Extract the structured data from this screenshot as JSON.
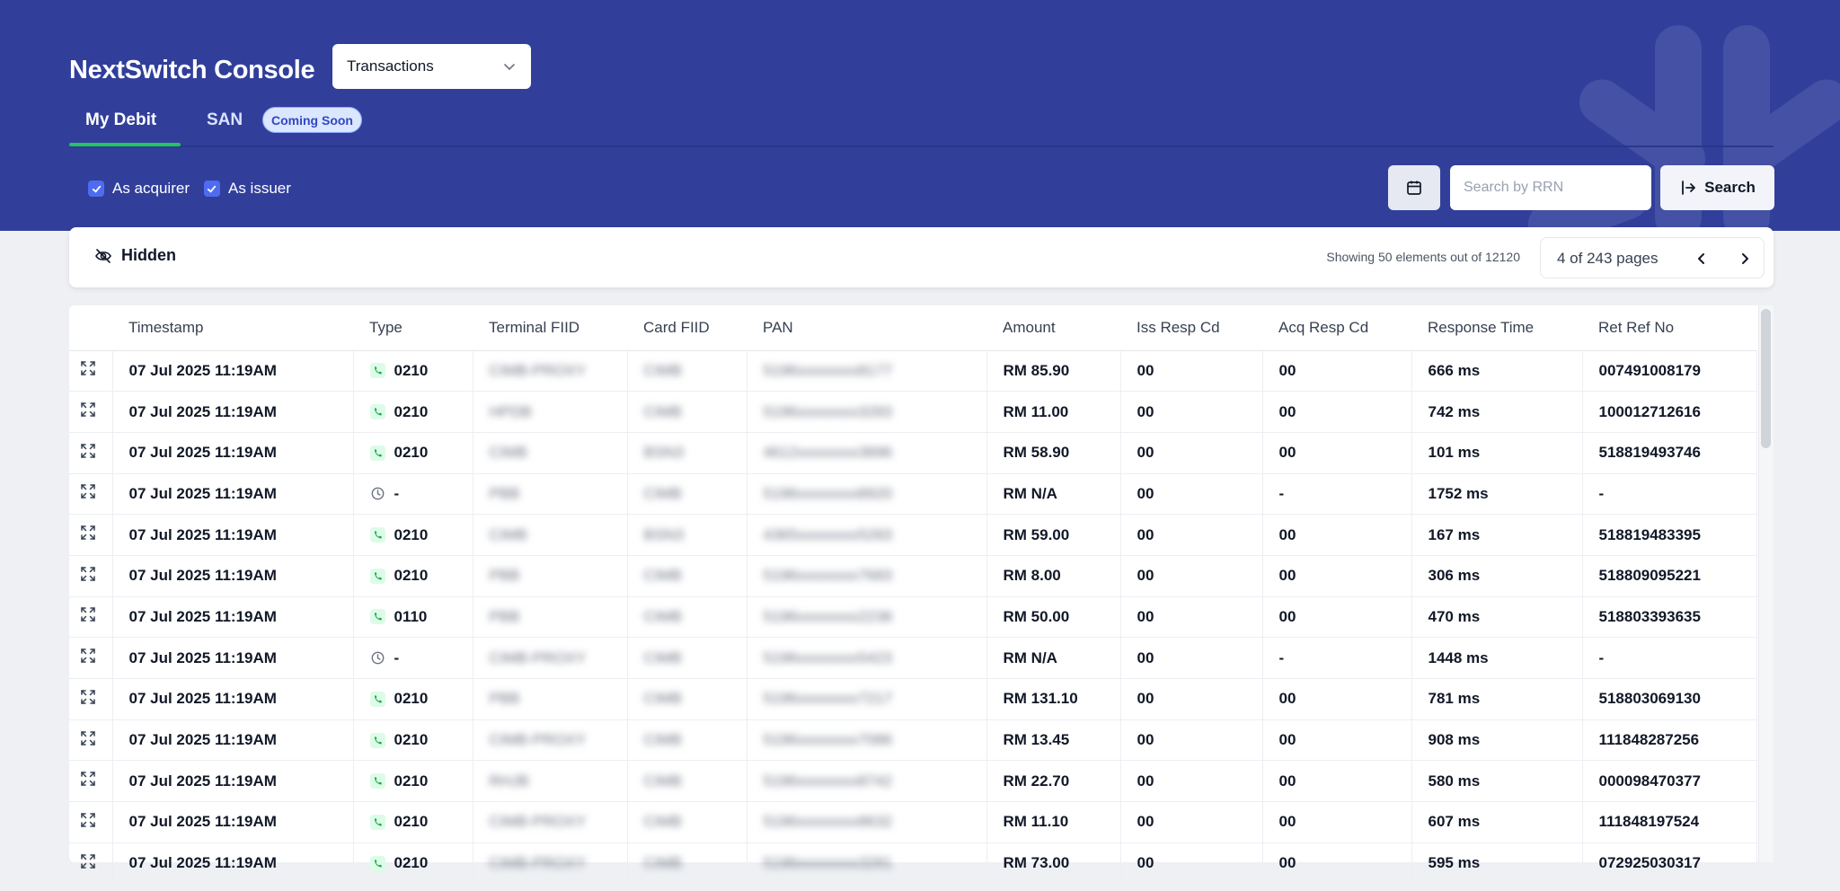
{
  "colors": {
    "header_bg": "#313f9b",
    "accent_green": "#22c55e",
    "checkbox": "#4f6cf0",
    "badge_bg": "#dbe6ff"
  },
  "header": {
    "brand": "NextSwitch Console",
    "module_select": {
      "value": "Transactions"
    },
    "tabs": [
      {
        "label": "My Debit",
        "active": true
      },
      {
        "label": "SAN",
        "active": false,
        "badge": "Coming Soon"
      }
    ],
    "filters": [
      {
        "label": "As acquirer",
        "checked": true
      },
      {
        "label": "As issuer",
        "checked": true
      }
    ],
    "search": {
      "placeholder": "Search by RRN",
      "value": "",
      "button": "Search",
      "calendar_icon": "calendar-icon",
      "search_icon": "search-arrow-icon"
    }
  },
  "toolbar": {
    "hidden_label": "Hidden",
    "hidden_icon": "eye-slash-icon",
    "showing": "Showing 50 elements out of 12120",
    "pager_label": "4 of 243 pages"
  },
  "table": {
    "columns": [
      "Timestamp",
      "Type",
      "Terminal FIID",
      "Card FIID",
      "PAN",
      "Amount",
      "Iss Resp Cd",
      "Acq Resp Cd",
      "Response Time",
      "Ret Ref No"
    ],
    "rows": [
      {
        "timestamp": "07 Jul 2025 11:19AM",
        "status": "ok",
        "type": "0210",
        "terminal_fiid": "CIMB-PROXY",
        "card_fiid": "CIMB",
        "pan": "5196xxxxxxxx8177",
        "amount": "RM 85.90",
        "iss_resp": "00",
        "acq_resp": "00",
        "response_time": "666 ms",
        "rrn": "007491008179"
      },
      {
        "timestamp": "07 Jul 2025 11:19AM",
        "status": "ok",
        "type": "0210",
        "terminal_fiid": "HPDB",
        "card_fiid": "CIMB",
        "pan": "5196xxxxxxxx3283",
        "amount": "RM 11.00",
        "iss_resp": "00",
        "acq_resp": "00",
        "response_time": "742 ms",
        "rrn": "100012712616"
      },
      {
        "timestamp": "07 Jul 2025 11:19AM",
        "status": "ok",
        "type": "0210",
        "terminal_fiid": "CIMB",
        "card_fiid": "BSN3",
        "pan": "4612xxxxxxxx3896",
        "amount": "RM 58.90",
        "iss_resp": "00",
        "acq_resp": "00",
        "response_time": "101 ms",
        "rrn": "518819493746"
      },
      {
        "timestamp": "07 Jul 2025 11:19AM",
        "status": "pending",
        "type": "-",
        "terminal_fiid": "PBB",
        "card_fiid": "CIMB",
        "pan": "5196xxxxxxxx8920",
        "amount": "RM N/A",
        "iss_resp": "00",
        "acq_resp": "-",
        "response_time": "1752 ms",
        "rrn": "-"
      },
      {
        "timestamp": "07 Jul 2025 11:19AM",
        "status": "ok",
        "type": "0210",
        "terminal_fiid": "CIMB",
        "card_fiid": "BSN3",
        "pan": "4365xxxxxxxx5283",
        "amount": "RM 59.00",
        "iss_resp": "00",
        "acq_resp": "00",
        "response_time": "167 ms",
        "rrn": "518819483395"
      },
      {
        "timestamp": "07 Jul 2025 11:19AM",
        "status": "ok",
        "type": "0210",
        "terminal_fiid": "PBB",
        "card_fiid": "CIMB",
        "pan": "5196xxxxxxxx7683",
        "amount": "RM 8.00",
        "iss_resp": "00",
        "acq_resp": "00",
        "response_time": "306 ms",
        "rrn": "518809095221"
      },
      {
        "timestamp": "07 Jul 2025 11:19AM",
        "status": "ok",
        "type": "0110",
        "terminal_fiid": "PBB",
        "card_fiid": "CIMB",
        "pan": "5196xxxxxxxx2238",
        "amount": "RM 50.00",
        "iss_resp": "00",
        "acq_resp": "00",
        "response_time": "470 ms",
        "rrn": "518803393635"
      },
      {
        "timestamp": "07 Jul 2025 11:19AM",
        "status": "pending",
        "type": "-",
        "terminal_fiid": "CIMB-PROXY",
        "card_fiid": "CIMB",
        "pan": "5196xxxxxxxx5423",
        "amount": "RM N/A",
        "iss_resp": "00",
        "acq_resp": "-",
        "response_time": "1448 ms",
        "rrn": "-"
      },
      {
        "timestamp": "07 Jul 2025 11:19AM",
        "status": "ok",
        "type": "0210",
        "terminal_fiid": "PBB",
        "card_fiid": "CIMB",
        "pan": "5196xxxxxxxx7217",
        "amount": "RM 131.10",
        "iss_resp": "00",
        "acq_resp": "00",
        "response_time": "781 ms",
        "rrn": "518803069130"
      },
      {
        "timestamp": "07 Jul 2025 11:19AM",
        "status": "ok",
        "type": "0210",
        "terminal_fiid": "CIMB-PROXY",
        "card_fiid": "CIMB",
        "pan": "5196xxxxxxxx7086",
        "amount": "RM 13.45",
        "iss_resp": "00",
        "acq_resp": "00",
        "response_time": "908 ms",
        "rrn": "111848287256"
      },
      {
        "timestamp": "07 Jul 2025 11:19AM",
        "status": "ok",
        "type": "0210",
        "terminal_fiid": "RHJB",
        "card_fiid": "CIMB",
        "pan": "5196xxxxxxxx8742",
        "amount": "RM 22.70",
        "iss_resp": "00",
        "acq_resp": "00",
        "response_time": "580 ms",
        "rrn": "000098470377"
      },
      {
        "timestamp": "07 Jul 2025 11:19AM",
        "status": "ok",
        "type": "0210",
        "terminal_fiid": "CIMB-PROXY",
        "card_fiid": "CIMB",
        "pan": "5196xxxxxxxx8632",
        "amount": "RM 11.10",
        "iss_resp": "00",
        "acq_resp": "00",
        "response_time": "607 ms",
        "rrn": "111848197524"
      },
      {
        "timestamp": "07 Jul 2025 11:19AM",
        "status": "ok",
        "type": "0210",
        "terminal_fiid": "CIMB-PROXY",
        "card_fiid": "CIMB",
        "pan": "5196xxxxxxxx3281",
        "amount": "RM 73.00",
        "iss_resp": "00",
        "acq_resp": "00",
        "response_time": "595 ms",
        "rrn": "072925030317"
      }
    ]
  }
}
